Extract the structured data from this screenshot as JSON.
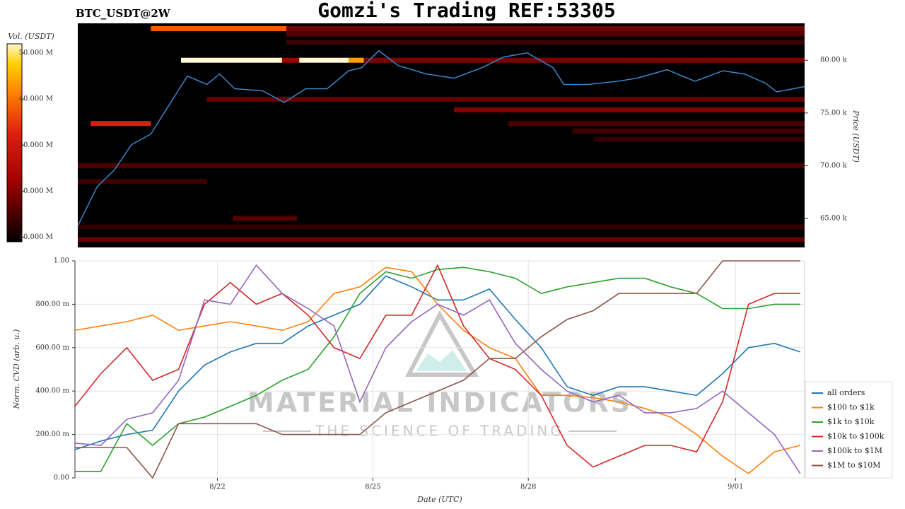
{
  "header": {
    "title": "Gomzi's Trading REF:53305",
    "symbol": "BTC_USDT@2W"
  },
  "watermark": {
    "title": "MATERIAL INDICATORS",
    "subtitle": "THE SCIENCE OF TRADING"
  },
  "chart_data": [
    {
      "type": "heatmap",
      "y_label": "Price (USDT)",
      "colorbar_label": "Vol. (USDT)",
      "xlim": [
        0,
        338
      ],
      "ylim": [
        62250,
        83500
      ],
      "yticks": [
        {
          "value": 65000,
          "label": "65.00 k"
        },
        {
          "value": 70000,
          "label": "70.00 k"
        },
        {
          "value": 75000,
          "label": "75.00 k"
        },
        {
          "value": 80000,
          "label": "80.00 k"
        }
      ],
      "clim": [
        9,
        52
      ],
      "cticks": [
        {
          "value": 10,
          "label": "10.000 M"
        },
        {
          "value": 20,
          "label": "20.000 M"
        },
        {
          "value": 30,
          "label": "30.000 M"
        },
        {
          "value": 40,
          "label": "40.000 M"
        },
        {
          "value": 50,
          "label": "50.000 M"
        }
      ],
      "bands": {
        "price": [
          83000,
          83000,
          82500,
          81700,
          80000,
          80000,
          80000,
          80000,
          80000,
          76300,
          75300,
          74000,
          74000,
          73300,
          72500,
          70000,
          68500,
          65000,
          64200,
          63000
        ],
        "start": [
          34,
          97,
          97,
          97,
          48,
          95,
          103,
          126,
          133,
          60,
          175,
          6,
          200,
          230,
          240,
          0,
          0,
          72,
          0,
          0
        ],
        "end": [
          97,
          338,
          338,
          338,
          95,
          103,
          126,
          133,
          338,
          338,
          338,
          34,
          338,
          338,
          338,
          338,
          60,
          102,
          338,
          338
        ],
        "values": [
          38,
          18,
          16,
          14,
          52,
          22,
          52,
          44,
          19,
          17,
          20,
          32,
          15,
          14,
          13,
          15,
          14,
          16,
          13,
          17
        ]
      },
      "line": {
        "color": "#3a86c8",
        "x": [
          0,
          9,
          17,
          25,
          34,
          42,
          51,
          60,
          66,
          73,
          86,
          96,
          106,
          116,
          126,
          132,
          140,
          149,
          162,
          175,
          188,
          198,
          209,
          221,
          226,
          237,
          251,
          260,
          274,
          287,
          300,
          310,
          320,
          325,
          338
        ],
        "values": [
          64300,
          68000,
          69600,
          72000,
          73000,
          75600,
          78500,
          77700,
          78700,
          77300,
          77100,
          76000,
          77300,
          77300,
          79000,
          79300,
          80900,
          79500,
          78700,
          78300,
          79300,
          80300,
          80700,
          79300,
          77700,
          77700,
          78000,
          78300,
          79100,
          78000,
          79000,
          78700,
          77800,
          77000,
          77500
        ]
      }
    },
    {
      "type": "line",
      "y_label": "Norm. CVD (arb. u.)",
      "x_label": "Date (UTC)",
      "x": [
        0,
        12,
        24,
        36,
        48,
        60,
        72,
        84,
        96,
        108,
        120,
        132,
        144,
        156,
        168,
        180,
        192,
        204,
        216,
        228,
        240,
        252,
        264,
        276,
        288,
        300,
        312,
        324,
        336
      ],
      "xlim": [
        0,
        338
      ],
      "xticks": [
        {
          "value": 66,
          "label": "8/22"
        },
        {
          "value": 138,
          "label": "8/25"
        },
        {
          "value": 210,
          "label": "8/28"
        },
        {
          "value": 306,
          "label": "9/01"
        }
      ],
      "ylim": [
        0,
        1
      ],
      "yticks": [
        {
          "value": 0,
          "label": "0.00"
        },
        {
          "value": 0.2,
          "label": "200.00 m"
        },
        {
          "value": 0.4,
          "label": "400.00 m"
        },
        {
          "value": 0.6,
          "label": "600.00 m"
        },
        {
          "value": 0.8,
          "label": "800.00 m"
        },
        {
          "value": 1,
          "label": "1.00"
        }
      ],
      "grid": true,
      "legend": "lower right",
      "series": [
        {
          "name": "all orders",
          "color": "#1f77b4",
          "values": [
            0.13,
            0.17,
            0.2,
            0.22,
            0.4,
            0.52,
            0.58,
            0.62,
            0.62,
            0.7,
            0.75,
            0.8,
            0.93,
            0.88,
            0.82,
            0.82,
            0.87,
            0.73,
            0.6,
            0.42,
            0.38,
            0.42,
            0.42,
            0.4,
            0.38,
            0.48,
            0.6,
            0.62,
            0.58
          ]
        },
        {
          "name": "$100 to $1k",
          "color": "#ff7f0e",
          "values": [
            0.68,
            0.7,
            0.72,
            0.75,
            0.68,
            0.7,
            0.72,
            0.7,
            0.68,
            0.72,
            0.85,
            0.88,
            0.97,
            0.95,
            0.8,
            0.68,
            0.6,
            0.55,
            0.38,
            0.38,
            0.37,
            0.35,
            0.32,
            0.28,
            0.2,
            0.1,
            0.02,
            0.12,
            0.15
          ]
        },
        {
          "name": "$1k to $10k",
          "color": "#2ca02c",
          "values": [
            0.03,
            0.03,
            0.25,
            0.15,
            0.25,
            0.28,
            0.33,
            0.38,
            0.45,
            0.5,
            0.65,
            0.85,
            0.95,
            0.92,
            0.96,
            0.97,
            0.95,
            0.92,
            0.85,
            0.88,
            0.9,
            0.92,
            0.92,
            0.88,
            0.85,
            0.78,
            0.78,
            0.8,
            0.8
          ]
        },
        {
          "name": "$10k to $100k",
          "color": "#d62728",
          "values": [
            0.33,
            0.48,
            0.6,
            0.45,
            0.5,
            0.8,
            0.9,
            0.8,
            0.85,
            0.75,
            0.6,
            0.55,
            0.75,
            0.75,
            0.98,
            0.7,
            0.55,
            0.5,
            0.38,
            0.15,
            0.05,
            0.1,
            0.15,
            0.15,
            0.12,
            0.35,
            0.8,
            0.85,
            0.85
          ]
        },
        {
          "name": "$100k to $1M",
          "color": "#9467bd",
          "values": [
            0.16,
            0.15,
            0.27,
            0.3,
            0.45,
            0.82,
            0.8,
            0.98,
            0.85,
            0.78,
            0.7,
            0.35,
            0.6,
            0.72,
            0.8,
            0.75,
            0.82,
            0.62,
            0.5,
            0.4,
            0.35,
            0.38,
            0.3,
            0.3,
            0.32,
            0.4,
            0.3,
            0.2,
            0.02
          ]
        },
        {
          "name": "$1M to $10M",
          "color": "#8c564b",
          "values": [
            0.14,
            0.14,
            0.14,
            0,
            0.25,
            0.25,
            0.25,
            0.25,
            0.2,
            0.2,
            0.2,
            0.2,
            0.3,
            0.35,
            0.4,
            0.45,
            0.55,
            0.55,
            0.65,
            0.73,
            0.77,
            0.85,
            0.85,
            0.85,
            0.85,
            1,
            1,
            1,
            1
          ]
        }
      ]
    }
  ]
}
